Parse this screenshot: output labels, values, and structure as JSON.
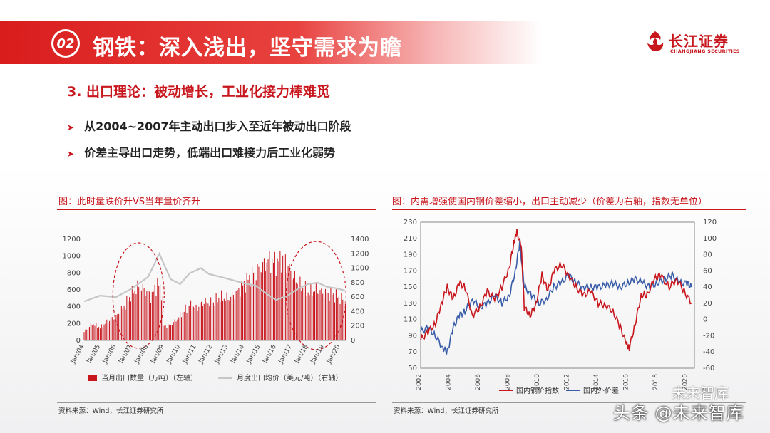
{
  "header": {
    "badge": "02",
    "title": "钢铁：深入浅出，坚守需求为瞻",
    "logo_cn": "长江证券",
    "logo_en": "CHANGJIANG SECURITIES"
  },
  "section_title": "3. 出口理论：被动增长，工业化接力棒难觅",
  "bullets": [
    "从2004~2007年主动出口步入至近年被动出口阶段",
    "价差主导出口走势，低端出口难接力后工业化弱势"
  ],
  "watermark": {
    "main": "头条 @未来智库",
    "top": "未来智库"
  },
  "colors": {
    "accent": "#c8161d",
    "series_red": "#c8161d",
    "series_blue": "#3a5da8",
    "series_gray": "#c6c6c6"
  },
  "left_figure": {
    "title": "图：此时量跌价升VS当年量价齐升",
    "source": "资料来源：Wind，长江证券研究所"
  },
  "right_figure": {
    "title": "图：内需增强使国内钢价差缩小，出口主动减少（价差为右轴，指数无单位）",
    "source": "资料来源：Wind，长江证券研究所"
  },
  "chart_data": [
    {
      "type": "bar+line",
      "x_tick_labels": [
        "Jan/04",
        "Jan/05",
        "Jan/06",
        "Jan/07",
        "Jan/08",
        "Jan/09",
        "Jan/10",
        "Jan/11",
        "Jan/12",
        "Jan/13",
        "Jan/14",
        "Jan/15",
        "Jan/16",
        "Jan/17",
        "Jan/18",
        "Jan/19",
        "Jan/20"
      ],
      "x_range": [
        2004,
        2020.4
      ],
      "left_axis": {
        "ticks": [
          "0",
          "200",
          "400",
          "600",
          "800",
          "1000",
          "1200"
        ],
        "ylim": [
          0,
          1200
        ]
      },
      "right_axis": {
        "ticks": [
          "0",
          "200",
          "400",
          "600",
          "800",
          "1000",
          "1200",
          "1400"
        ],
        "ylim": [
          0,
          1400
        ]
      },
      "series": [
        {
          "name": "当月出口数量（万吨）（左轴）",
          "type": "bar",
          "axis": "left",
          "points": [
            [
              2004.0,
              100
            ],
            [
              2004.5,
              200
            ],
            [
              2005.0,
              150
            ],
            [
              2005.5,
              230
            ],
            [
              2006.0,
              280
            ],
            [
              2006.5,
              400
            ],
            [
              2007.0,
              560
            ],
            [
              2007.4,
              640
            ],
            [
              2007.8,
              600
            ],
            [
              2008.2,
              520
            ],
            [
              2008.6,
              680
            ],
            [
              2008.9,
              550
            ],
            [
              2009.0,
              170
            ],
            [
              2009.4,
              180
            ],
            [
              2009.8,
              250
            ],
            [
              2010.2,
              340
            ],
            [
              2010.6,
              420
            ],
            [
              2011.0,
              380
            ],
            [
              2011.5,
              460
            ],
            [
              2012.0,
              440
            ],
            [
              2012.5,
              510
            ],
            [
              2013.0,
              500
            ],
            [
              2013.5,
              560
            ],
            [
              2014.0,
              670
            ],
            [
              2014.5,
              780
            ],
            [
              2015.0,
              850
            ],
            [
              2015.5,
              950
            ],
            [
              2016.0,
              920
            ],
            [
              2016.5,
              980
            ],
            [
              2017.0,
              780
            ],
            [
              2017.5,
              650
            ],
            [
              2018.0,
              570
            ],
            [
              2018.5,
              600
            ],
            [
              2019.0,
              560
            ],
            [
              2019.5,
              550
            ],
            [
              2020.0,
              500
            ],
            [
              2020.3,
              480
            ]
          ]
        },
        {
          "name": "月度出口均价（美元/吨）（右轴）",
          "type": "line",
          "axis": "right",
          "points": [
            [
              2004.0,
              540
            ],
            [
              2005.0,
              620
            ],
            [
              2006.0,
              600
            ],
            [
              2007.0,
              720
            ],
            [
              2008.0,
              880
            ],
            [
              2008.7,
              1200
            ],
            [
              2009.4,
              850
            ],
            [
              2010.0,
              780
            ],
            [
              2010.6,
              930
            ],
            [
              2011.3,
              1000
            ],
            [
              2011.8,
              920
            ],
            [
              2012.5,
              880
            ],
            [
              2013.2,
              840
            ],
            [
              2014.0,
              790
            ],
            [
              2014.7,
              760
            ],
            [
              2015.5,
              630
            ],
            [
              2016.0,
              560
            ],
            [
              2016.7,
              620
            ],
            [
              2017.4,
              720
            ],
            [
              2018.0,
              780
            ],
            [
              2018.6,
              800
            ],
            [
              2019.2,
              740
            ],
            [
              2019.8,
              720
            ],
            [
              2020.3,
              690
            ]
          ]
        }
      ]
    },
    {
      "type": "line",
      "x_tick_labels": [
        "2002",
        "2004",
        "2006",
        "2008",
        "2010",
        "2012",
        "2014",
        "2016",
        "2018",
        "2020"
      ],
      "x_range": [
        2002,
        2020.5
      ],
      "left_axis": {
        "ticks": [
          "50",
          "70",
          "90",
          "110",
          "130",
          "150",
          "170",
          "190",
          "210",
          "230"
        ],
        "ylim": [
          50,
          230
        ]
      },
      "right_axis": {
        "ticks": [
          "-60",
          "-40",
          "-20",
          "0",
          "20",
          "40",
          "60",
          "80",
          "100",
          "120"
        ],
        "ylim": [
          -60,
          120
        ]
      },
      "series": [
        {
          "name": "国内钢价指数",
          "axis": "left",
          "points": [
            [
              2002.0,
              85
            ],
            [
              2002.5,
              95
            ],
            [
              2003.0,
              105
            ],
            [
              2003.4,
              130
            ],
            [
              2003.8,
              150
            ],
            [
              2004.2,
              135
            ],
            [
              2004.6,
              155
            ],
            [
              2005.0,
              150
            ],
            [
              2005.5,
              115
            ],
            [
              2006.0,
              125
            ],
            [
              2006.5,
              145
            ],
            [
              2007.0,
              135
            ],
            [
              2007.5,
              150
            ],
            [
              2008.0,
              175
            ],
            [
              2008.3,
              205
            ],
            [
              2008.5,
              218
            ],
            [
              2008.8,
              200
            ],
            [
              2009.0,
              125
            ],
            [
              2009.4,
              115
            ],
            [
              2009.8,
              130
            ],
            [
              2010.2,
              165
            ],
            [
              2010.6,
              145
            ],
            [
              2011.0,
              170
            ],
            [
              2011.5,
              178
            ],
            [
              2012.0,
              165
            ],
            [
              2012.5,
              150
            ],
            [
              2013.0,
              140
            ],
            [
              2013.5,
              145
            ],
            [
              2014.0,
              130
            ],
            [
              2014.5,
              128
            ],
            [
              2015.0,
              120
            ],
            [
              2015.5,
              100
            ],
            [
              2015.9,
              80
            ],
            [
              2016.1,
              75
            ],
            [
              2016.5,
              105
            ],
            [
              2016.9,
              140
            ],
            [
              2017.3,
              140
            ],
            [
              2017.8,
              160
            ],
            [
              2018.2,
              165
            ],
            [
              2018.8,
              150
            ],
            [
              2019.3,
              160
            ],
            [
              2019.8,
              145
            ],
            [
              2020.3,
              130
            ]
          ]
        },
        {
          "name": "国内外价差",
          "axis": "right",
          "points": [
            [
              2002.0,
              -15
            ],
            [
              2002.5,
              -10
            ],
            [
              2003.0,
              -20
            ],
            [
              2003.5,
              -35
            ],
            [
              2003.8,
              -40
            ],
            [
              2004.2,
              -10
            ],
            [
              2004.6,
              5
            ],
            [
              2005.0,
              10
            ],
            [
              2005.5,
              25
            ],
            [
              2006.0,
              15
            ],
            [
              2006.5,
              20
            ],
            [
              2007.0,
              30
            ],
            [
              2007.5,
              20
            ],
            [
              2008.0,
              30
            ],
            [
              2008.4,
              60
            ],
            [
              2008.7,
              95
            ],
            [
              2009.0,
              40
            ],
            [
              2009.5,
              30
            ],
            [
              2010.0,
              20
            ],
            [
              2010.5,
              25
            ],
            [
              2011.0,
              40
            ],
            [
              2011.5,
              45
            ],
            [
              2012.0,
              55
            ],
            [
              2012.5,
              45
            ],
            [
              2013.0,
              40
            ],
            [
              2013.5,
              40
            ],
            [
              2014.0,
              40
            ],
            [
              2014.5,
              42
            ],
            [
              2015.0,
              45
            ],
            [
              2015.5,
              40
            ],
            [
              2016.0,
              45
            ],
            [
              2016.5,
              50
            ],
            [
              2017.0,
              45
            ],
            [
              2017.5,
              40
            ],
            [
              2018.0,
              45
            ],
            [
              2018.5,
              50
            ],
            [
              2019.0,
              55
            ],
            [
              2019.5,
              45
            ],
            [
              2020.0,
              45
            ],
            [
              2020.3,
              40
            ]
          ]
        }
      ]
    }
  ]
}
